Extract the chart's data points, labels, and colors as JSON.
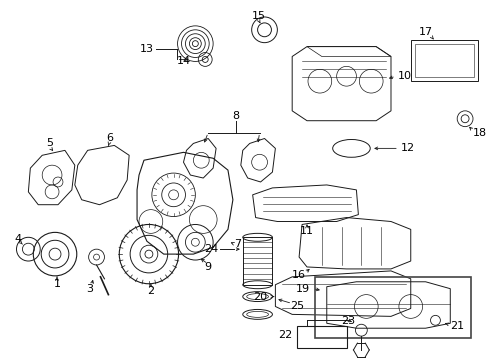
{
  "bg": "#ffffff",
  "lc": "#1a1a1a",
  "fig_w": 4.89,
  "fig_h": 3.6,
  "dpi": 100
}
